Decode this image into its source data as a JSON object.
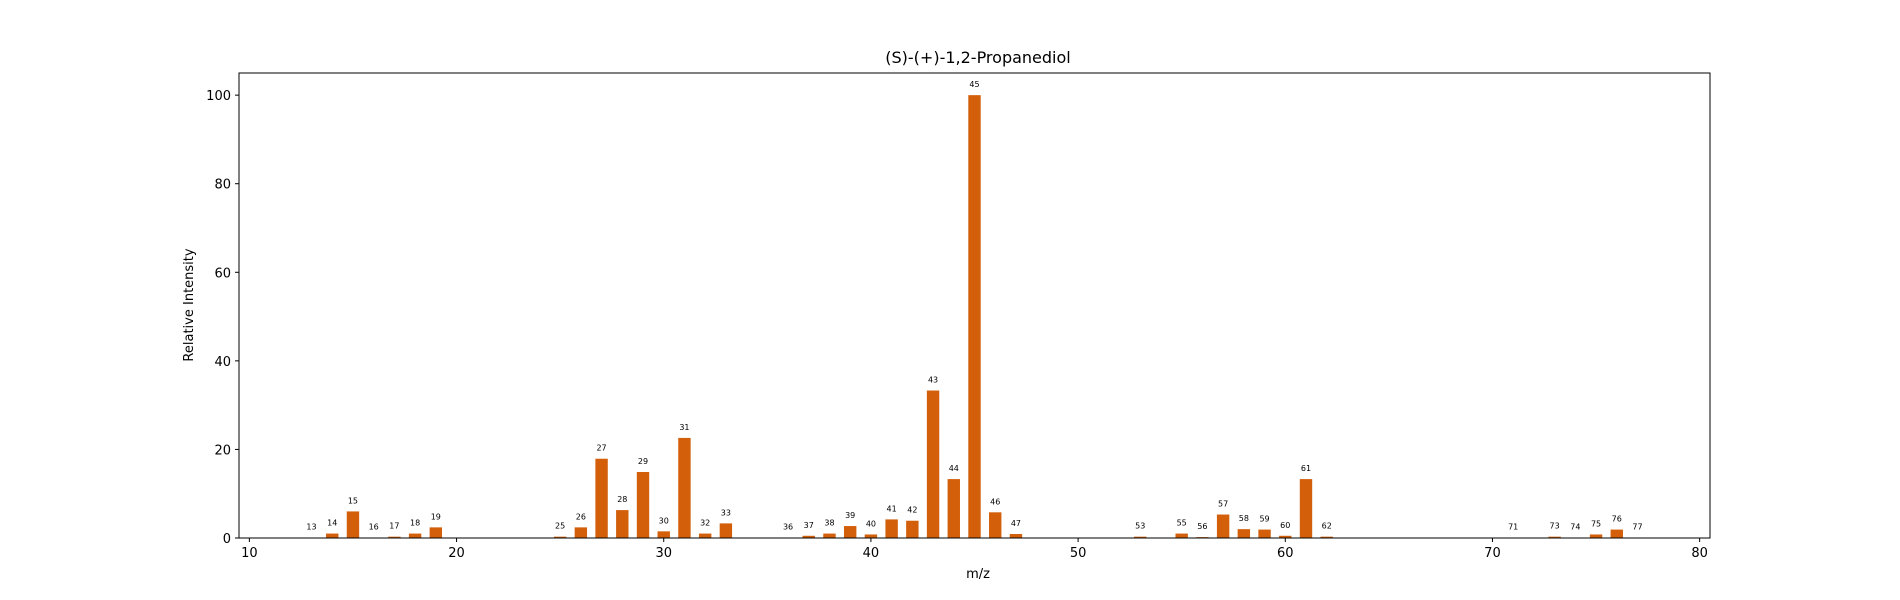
{
  "chart_data": {
    "type": "bar",
    "title": "(S)-(+)-1,2-Propanediol",
    "xlabel": "m/z",
    "ylabel": "Relative Intensity",
    "xlim": [
      9.5,
      80.5
    ],
    "ylim": [
      0,
      105
    ],
    "x_ticks": [
      10,
      20,
      30,
      40,
      50,
      60,
      70,
      80
    ],
    "y_ticks": [
      0,
      20,
      40,
      60,
      80,
      100
    ],
    "bar_color": "#d35f0a",
    "grid": false,
    "x": [
      13,
      14,
      15,
      16,
      17,
      18,
      19,
      25,
      26,
      27,
      28,
      29,
      30,
      31,
      32,
      33,
      36,
      37,
      38,
      39,
      40,
      41,
      42,
      43,
      44,
      45,
      46,
      47,
      53,
      55,
      56,
      57,
      58,
      59,
      60,
      61,
      62,
      71,
      73,
      74,
      75,
      76,
      77
    ],
    "values": [
      0.1,
      1.0,
      6.0,
      0.1,
      0.3,
      1.0,
      2.4,
      0.3,
      2.4,
      17.9,
      6.3,
      14.9,
      1.5,
      22.6,
      1.0,
      3.3,
      0.1,
      0.5,
      1.0,
      2.7,
      0.8,
      4.2,
      3.9,
      33.3,
      13.3,
      100.0,
      5.8,
      0.9,
      0.3,
      1.0,
      0.2,
      5.3,
      2.0,
      1.9,
      0.5,
      13.3,
      0.3,
      0.1,
      0.3,
      0.1,
      0.8,
      1.9,
      0.1
    ]
  }
}
